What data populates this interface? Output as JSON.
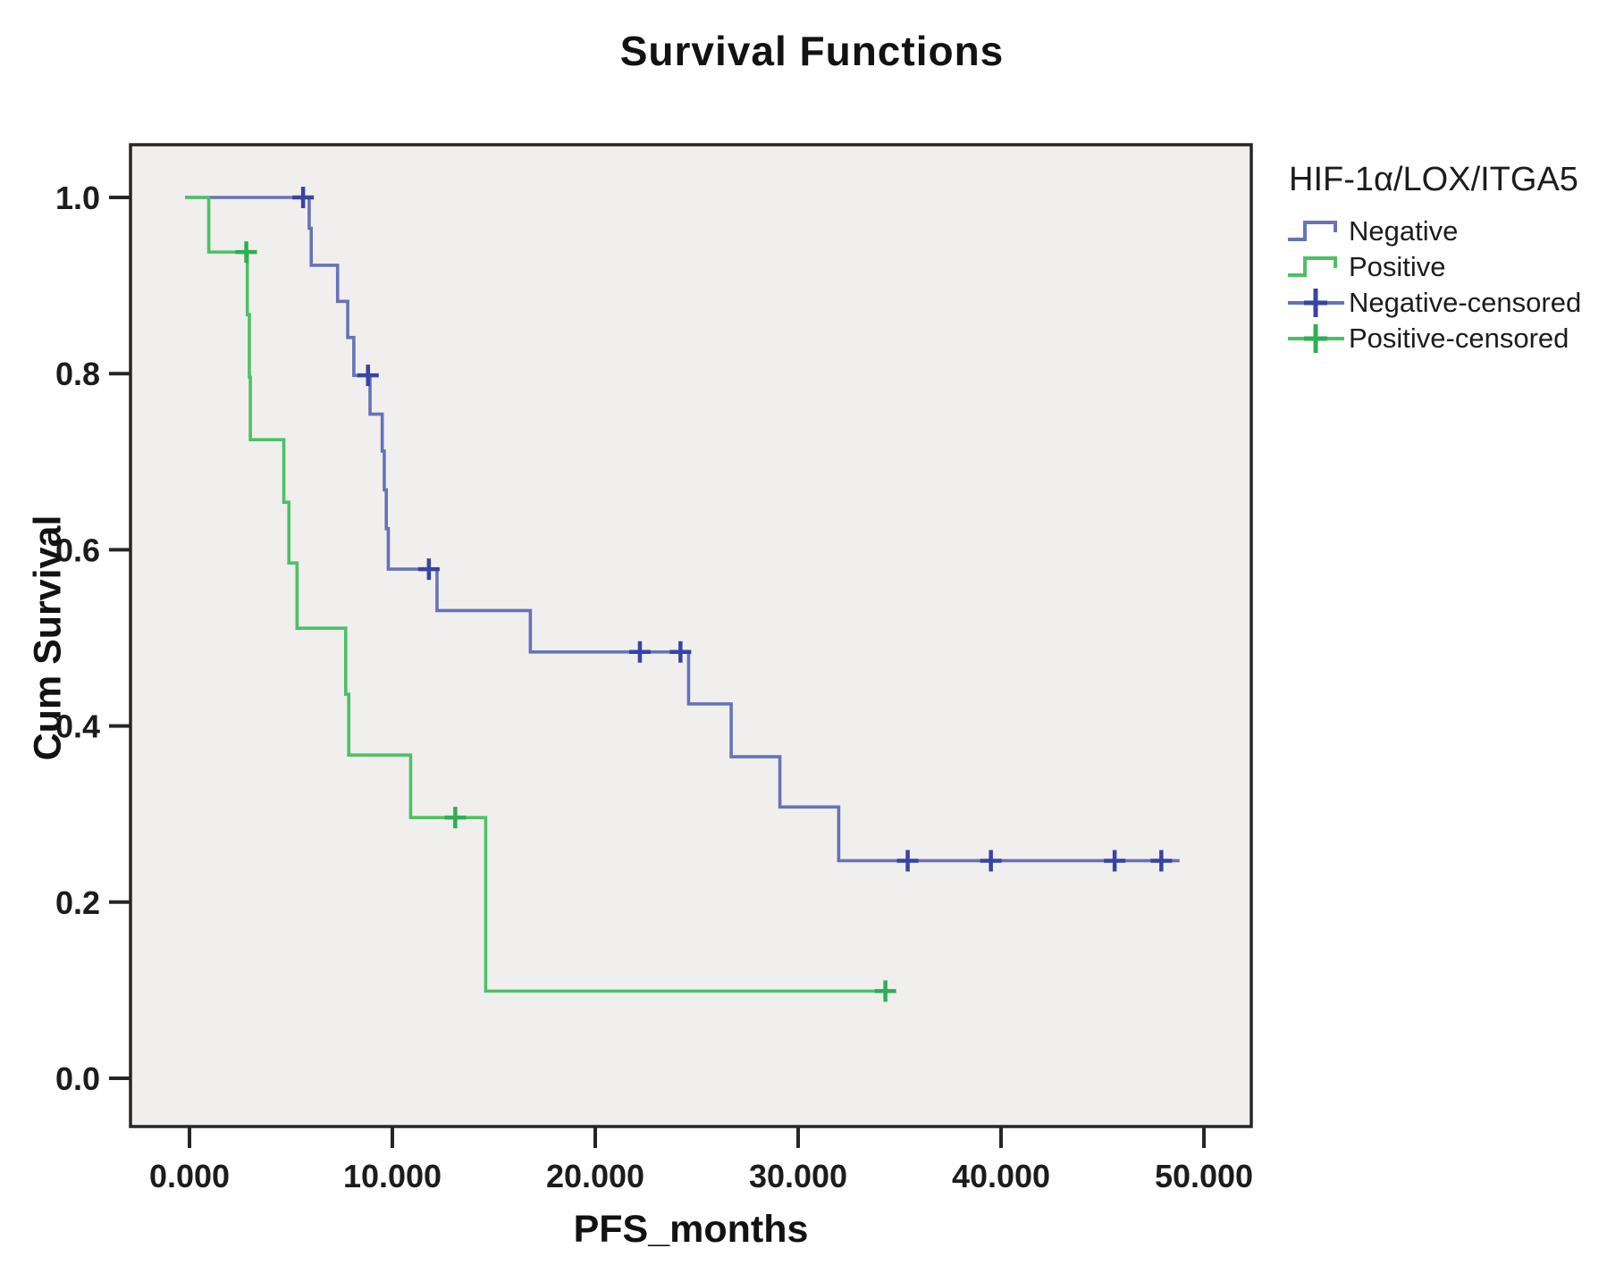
{
  "title": "Survival Functions",
  "axes": {
    "x": {
      "label": "PFS_months",
      "ticks": [
        "0.000",
        "10.000",
        "20.000",
        "30.000",
        "40.000",
        "50.000"
      ],
      "tick_values": [
        0,
        10,
        20,
        30,
        40,
        50
      ]
    },
    "y": {
      "label": "Cum Survival",
      "ticks": [
        "0.0",
        "0.2",
        "0.4",
        "0.6",
        "0.8",
        "1.0"
      ],
      "tick_values": [
        0,
        0.2,
        0.4,
        0.6,
        0.8,
        1.0
      ]
    }
  },
  "legend": {
    "title": "HIF-1α/LOX/ITGA5",
    "entries": [
      {
        "label": "Negative",
        "symbol": "step-line-icon",
        "color": "#6673b8"
      },
      {
        "label": "Positive",
        "symbol": "step-line-icon",
        "color": "#4cc164"
      },
      {
        "label": "Negative-censored",
        "symbol": "censor-plus-icon",
        "color": "#3644a2"
      },
      {
        "label": "Positive-censored",
        "symbol": "censor-plus-icon",
        "color": "#2fae52"
      }
    ]
  },
  "colors": {
    "plot_background": "#f0efed",
    "frame": "#262626",
    "negative_line": "#6673b8",
    "negative_censor": "#3644a2",
    "positive_line": "#4cc164",
    "positive_censor": "#2fae52"
  },
  "chart_data": {
    "type": "line",
    "subtype": "kaplan-meier-step",
    "title": "Survival Functions",
    "xlabel": "PFS_months",
    "ylabel": "Cum Survival",
    "xlim": [
      -2.9,
      52.3
    ],
    "ylim": [
      -0.06,
      1.06
    ],
    "x_ticks": [
      0,
      10,
      20,
      30,
      40,
      50
    ],
    "y_ticks": [
      0,
      0.2,
      0.4,
      0.6,
      0.8,
      1.0
    ],
    "grid": false,
    "legend_position": "right",
    "series": [
      {
        "name": "Negative",
        "color": "#6673b8",
        "censor_color": "#3644a2",
        "steps": [
          [
            0,
            1.0
          ],
          [
            5.9,
            0.965
          ],
          [
            6.0,
            0.923
          ],
          [
            7.3,
            0.882
          ],
          [
            7.8,
            0.841
          ],
          [
            8.1,
            0.798
          ],
          [
            8.9,
            0.754
          ],
          [
            9.5,
            0.712
          ],
          [
            9.6,
            0.668
          ],
          [
            9.7,
            0.624
          ],
          [
            9.8,
            0.578
          ],
          [
            12.2,
            0.531
          ],
          [
            16.8,
            0.484
          ],
          [
            24.6,
            0.425
          ],
          [
            26.7,
            0.365
          ],
          [
            29.1,
            0.308
          ],
          [
            32.0,
            0.247
          ]
        ],
        "end_time": 48.8,
        "censored": [
          [
            5.6,
            1.0
          ],
          [
            8.8,
            0.798
          ],
          [
            11.8,
            0.578
          ],
          [
            22.2,
            0.484
          ],
          [
            24.2,
            0.484
          ],
          [
            35.4,
            0.247
          ],
          [
            39.5,
            0.247
          ],
          [
            45.6,
            0.247
          ],
          [
            47.9,
            0.247
          ]
        ]
      },
      {
        "name": "Positive",
        "color": "#4cc164",
        "censor_color": "#2fae52",
        "steps": [
          [
            0,
            1.0
          ],
          [
            0.95,
            0.938
          ],
          [
            2.85,
            0.867
          ],
          [
            2.95,
            0.796
          ],
          [
            3.0,
            0.725
          ],
          [
            4.65,
            0.654
          ],
          [
            4.9,
            0.585
          ],
          [
            5.3,
            0.511
          ],
          [
            7.7,
            0.436
          ],
          [
            7.85,
            0.367
          ],
          [
            10.9,
            0.296
          ],
          [
            14.6,
            0.099
          ]
        ],
        "end_time": 34.3,
        "censored": [
          [
            2.8,
            0.938
          ],
          [
            13.1,
            0.296
          ],
          [
            34.3,
            0.099
          ]
        ]
      }
    ]
  }
}
